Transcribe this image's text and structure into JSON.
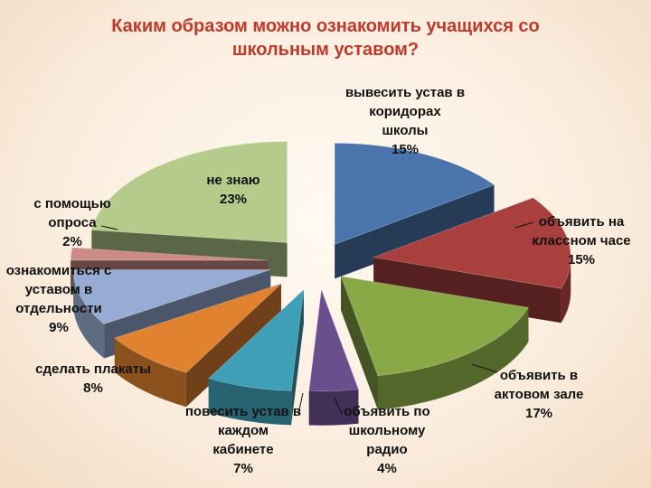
{
  "chart_data": {
    "type": "pie",
    "title_lines": [
      "Каким образом можно ознакомить учащихся со",
      "школьным уставом?"
    ],
    "slices": [
      {
        "lines": [
          "вывесить устав в",
          "коридорах",
          "школы"
        ],
        "value": 15,
        "display": "15%",
        "color": "#4a75ac"
      },
      {
        "lines": [
          "объявить на",
          "классном часе"
        ],
        "value": 15,
        "display": "15%",
        "color": "#a9403d"
      },
      {
        "lines": [
          "объявить в",
          "актовом зале"
        ],
        "value": 17,
        "display": "17%",
        "color": "#89a846"
      },
      {
        "lines": [
          "объявить по",
          "школьному",
          "радио"
        ],
        "value": 4,
        "display": "4%",
        "color": "#6a4e8e"
      },
      {
        "lines": [
          "повесить устав в",
          "каждом",
          "кабинете"
        ],
        "value": 7,
        "display": "7%",
        "color": "#3f9fb6"
      },
      {
        "lines": [
          "сделать плакаты"
        ],
        "value": 8,
        "display": "8%",
        "color": "#e0822f"
      },
      {
        "lines": [
          "ознакомиться с",
          "уставом в",
          "отдельности"
        ],
        "value": 9,
        "display": "9%",
        "color": "#96acd4"
      },
      {
        "lines": [
          "с помощью",
          "опроса"
        ],
        "value": 2,
        "display": "2%",
        "color": "#cd8b88"
      },
      {
        "lines": [
          "не знаю"
        ],
        "value": 23,
        "display": "23%",
        "color": "#b5cb8b"
      }
    ]
  }
}
